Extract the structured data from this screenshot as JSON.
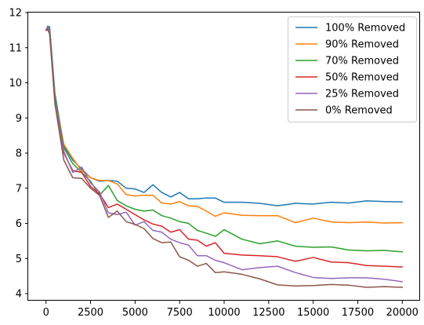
{
  "chart_data": {
    "type": "line",
    "title": "",
    "xlabel": "",
    "ylabel": "",
    "xlim": [
      -1000,
      21000
    ],
    "ylim": [
      3.8,
      12.0
    ],
    "x_ticks": [
      0,
      2500,
      5000,
      7500,
      10000,
      12500,
      15000,
      17500,
      20000
    ],
    "y_ticks": [
      4,
      5,
      6,
      7,
      8,
      9,
      10,
      11,
      12
    ],
    "grid": false,
    "legend_position": "top-right",
    "series": [
      {
        "name": "100% Removed",
        "color": "#1f77b4",
        "x": [
          0,
          100,
          200,
          500,
          1000,
          1500,
          2000,
          2500,
          3000,
          3500,
          4000,
          4500,
          5000,
          5500,
          6000,
          6500,
          7000,
          7500,
          8000,
          8500,
          9000,
          9500,
          10000,
          11000,
          12000,
          13000,
          14000,
          15000,
          16000,
          17000,
          18000,
          19000,
          20000
        ],
        "y": [
          11.5,
          11.55,
          11.6,
          9.7,
          8.2,
          7.8,
          7.55,
          7.3,
          7.2,
          7.22,
          7.2,
          7.0,
          6.98,
          6.88,
          7.1,
          6.88,
          6.75,
          6.88,
          6.7,
          6.7,
          6.72,
          6.72,
          6.6,
          6.6,
          6.57,
          6.5,
          6.57,
          6.55,
          6.6,
          6.58,
          6.64,
          6.62,
          6.61
        ]
      },
      {
        "name": "90% Removed",
        "color": "#ff7f0e",
        "x": [
          0,
          100,
          200,
          500,
          1000,
          1500,
          2000,
          2500,
          3000,
          3500,
          4000,
          4500,
          5000,
          5500,
          6000,
          6500,
          7000,
          7500,
          8000,
          8500,
          9000,
          9500,
          10000,
          11000,
          12000,
          13000,
          14000,
          15000,
          16000,
          17000,
          18000,
          19000,
          20000
        ],
        "y": [
          11.5,
          11.55,
          11.45,
          9.6,
          8.25,
          7.85,
          7.5,
          7.3,
          7.22,
          7.22,
          7.12,
          6.82,
          6.78,
          6.8,
          6.8,
          6.58,
          6.55,
          6.62,
          6.5,
          6.48,
          6.35,
          6.2,
          6.3,
          6.23,
          6.22,
          6.22,
          6.02,
          6.15,
          6.04,
          6.02,
          6.04,
          6.01,
          6.02
        ]
      },
      {
        "name": "70% Removed",
        "color": "#2ca02c",
        "x": [
          0,
          100,
          200,
          500,
          1000,
          1500,
          2000,
          2500,
          3000,
          3500,
          4000,
          4500,
          5000,
          5500,
          6000,
          6500,
          7000,
          7500,
          8000,
          8500,
          9000,
          9500,
          10000,
          11000,
          12000,
          13000,
          14000,
          15000,
          16000,
          17000,
          18000,
          19000,
          20000
        ],
        "y": [
          11.5,
          11.62,
          11.55,
          9.6,
          8.15,
          7.7,
          7.45,
          7.2,
          6.8,
          7.08,
          6.65,
          6.5,
          6.4,
          6.35,
          6.38,
          6.22,
          6.15,
          6.05,
          6.0,
          5.8,
          5.72,
          5.63,
          5.82,
          5.55,
          5.42,
          5.5,
          5.35,
          5.32,
          5.33,
          5.24,
          5.22,
          5.23,
          5.19
        ]
      },
      {
        "name": "50% Removed",
        "color": "#d62728",
        "x": [
          0,
          100,
          200,
          500,
          1000,
          1500,
          2000,
          2500,
          3000,
          3500,
          4000,
          4500,
          5000,
          5500,
          6000,
          6500,
          7000,
          7500,
          8000,
          8500,
          9000,
          9500,
          10000,
          11000,
          12000,
          13000,
          14000,
          15000,
          16000,
          17000,
          18000,
          19000,
          20000
        ],
        "y": [
          11.5,
          11.55,
          11.45,
          9.5,
          8.0,
          7.5,
          7.45,
          7.05,
          6.85,
          6.45,
          6.55,
          6.4,
          6.25,
          6.1,
          5.98,
          5.92,
          5.75,
          5.82,
          5.55,
          5.52,
          5.35,
          5.45,
          5.15,
          5.1,
          5.08,
          5.05,
          4.92,
          5.03,
          4.9,
          4.88,
          4.8,
          4.78,
          4.76
        ]
      },
      {
        "name": "25% Removed",
        "color": "#9467bd",
        "x": [
          0,
          100,
          200,
          500,
          1000,
          1500,
          2000,
          2500,
          3000,
          3500,
          4000,
          4500,
          5000,
          5500,
          6000,
          6500,
          7000,
          7500,
          8000,
          8500,
          9000,
          9500,
          10000,
          11000,
          12000,
          13000,
          14000,
          15000,
          16000,
          17000,
          18000,
          19000,
          20000
        ],
        "y": [
          11.5,
          11.6,
          11.45,
          9.5,
          8.05,
          7.45,
          7.6,
          7.15,
          6.9,
          6.3,
          6.25,
          6.32,
          5.95,
          6.05,
          5.8,
          5.75,
          5.55,
          5.45,
          5.38,
          5.08,
          5.08,
          4.95,
          4.88,
          4.68,
          4.74,
          4.78,
          4.6,
          4.46,
          4.43,
          4.45,
          4.45,
          4.41,
          4.34
        ]
      },
      {
        "name": "0% Removed",
        "color": "#8c564b",
        "x": [
          0,
          100,
          200,
          500,
          1000,
          1500,
          2000,
          2500,
          3000,
          3500,
          4000,
          4500,
          5000,
          5500,
          6000,
          6500,
          7000,
          7500,
          8000,
          8500,
          9000,
          9500,
          10000,
          11000,
          12000,
          13000,
          14000,
          15000,
          16000,
          17000,
          18000,
          19000,
          20000
        ],
        "y": [
          11.5,
          11.5,
          11.4,
          9.4,
          7.8,
          7.3,
          7.28,
          7.0,
          6.8,
          6.17,
          6.35,
          6.05,
          5.97,
          5.85,
          5.57,
          5.45,
          5.47,
          5.05,
          4.95,
          4.78,
          4.86,
          4.6,
          4.62,
          4.55,
          4.42,
          4.25,
          4.22,
          4.23,
          4.26,
          4.24,
          4.18,
          4.2,
          4.18
        ]
      }
    ]
  }
}
